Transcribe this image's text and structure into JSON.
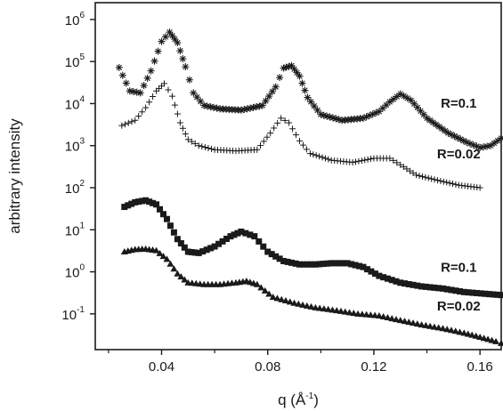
{
  "chart_data": {
    "type": "scatter",
    "title": "",
    "xlabel": "q (Å",
    "xlabel_sup": "-1",
    "xlabel_close": ")",
    "ylabel": "arbitrary intensity",
    "xlim": [
      0.015,
      0.168
    ],
    "ylim_log10": [
      -1.85,
      6.4
    ],
    "y_scale": "log",
    "grid": false,
    "x_ticks": [
      {
        "value": 0.04,
        "label": "0.04"
      },
      {
        "value": 0.08,
        "label": "0.08"
      },
      {
        "value": 0.12,
        "label": "0.12"
      },
      {
        "value": 0.16,
        "label": "0.16"
      }
    ],
    "y_ticks": [
      {
        "exp": 6,
        "base": "10",
        "sup": "6"
      },
      {
        "exp": 5,
        "base": "10",
        "sup": "5"
      },
      {
        "exp": 4,
        "base": "10",
        "sup": "4"
      },
      {
        "exp": 3,
        "base": "10",
        "sup": "3"
      },
      {
        "exp": 2,
        "base": "10",
        "sup": "2"
      },
      {
        "exp": 1,
        "base": "10",
        "sup": "1"
      },
      {
        "exp": 0,
        "base": "10",
        "sup": "0"
      },
      {
        "exp": -1,
        "base": "10",
        "sup": "-1"
      }
    ],
    "series": [
      {
        "name": "R=0.1",
        "marker": "asterisk",
        "x": [
          0.024,
          0.028,
          0.032,
          0.036,
          0.04,
          0.043,
          0.046,
          0.049,
          0.052,
          0.056,
          0.062,
          0.07,
          0.078,
          0.083,
          0.086,
          0.089,
          0.092,
          0.095,
          0.1,
          0.108,
          0.116,
          0.122,
          0.126,
          0.13,
          0.134,
          0.14,
          0.148,
          0.155,
          0.16,
          0.164,
          0.168
        ],
        "y": [
          72000,
          20000,
          18000,
          60000,
          300000,
          500000,
          280000,
          75000,
          18000,
          9000,
          7500,
          7000,
          9000,
          25000,
          70000,
          80000,
          45000,
          14000,
          5500,
          4000,
          4500,
          6500,
          11000,
          17000,
          12000,
          4500,
          2000,
          1200,
          900,
          1000,
          1500
        ]
      },
      {
        "name": "R=0.02",
        "marker": "plus",
        "x": [
          0.025,
          0.03,
          0.034,
          0.038,
          0.041,
          0.044,
          0.047,
          0.05,
          0.054,
          0.06,
          0.068,
          0.076,
          0.081,
          0.085,
          0.088,
          0.092,
          0.096,
          0.104,
          0.112,
          0.12,
          0.126,
          0.13,
          0.136,
          0.144,
          0.152,
          0.16
        ],
        "y": [
          3000,
          4000,
          8000,
          20000,
          30000,
          15000,
          3500,
          1400,
          1000,
          800,
          750,
          800,
          2000,
          4500,
          3500,
          1300,
          650,
          450,
          400,
          500,
          500,
          350,
          200,
          150,
          115,
          100
        ]
      },
      {
        "name": "R=0.1",
        "marker": "square",
        "x": [
          0.026,
          0.03,
          0.034,
          0.038,
          0.042,
          0.046,
          0.05,
          0.054,
          0.06,
          0.066,
          0.07,
          0.075,
          0.08,
          0.086,
          0.092,
          0.098,
          0.104,
          0.11,
          0.116,
          0.122,
          0.13,
          0.138,
          0.146,
          0.154,
          0.162,
          0.168
        ],
        "y": [
          35,
          45,
          50,
          40,
          18,
          6,
          3,
          2.8,
          4,
          7,
          9,
          7,
          3,
          1.8,
          1.5,
          1.5,
          1.6,
          1.6,
          1.3,
          0.8,
          0.55,
          0.45,
          0.4,
          0.33,
          0.3,
          0.28
        ]
      },
      {
        "name": "R=0.02",
        "marker": "triangle",
        "x": [
          0.026,
          0.03,
          0.034,
          0.038,
          0.042,
          0.046,
          0.05,
          0.056,
          0.062,
          0.068,
          0.072,
          0.076,
          0.082,
          0.09,
          0.098,
          0.106,
          0.114,
          0.122,
          0.13,
          0.138,
          0.146,
          0.154,
          0.16,
          0.166,
          0.168
        ],
        "y": [
          3,
          3.4,
          3.5,
          3.2,
          2,
          0.9,
          0.55,
          0.5,
          0.5,
          0.55,
          0.6,
          0.5,
          0.25,
          0.18,
          0.14,
          0.12,
          0.1,
          0.09,
          0.07,
          0.055,
          0.045,
          0.035,
          0.028,
          0.022,
          0.02
        ]
      }
    ],
    "annotations": [
      {
        "text": "R=0.1",
        "x": 0.152,
        "y": 8000
      },
      {
        "text": "R=0.02",
        "x": 0.152,
        "y": 500
      },
      {
        "text": "R=0.1",
        "x": 0.152,
        "y": 1.0
      },
      {
        "text": "R=0.02",
        "x": 0.152,
        "y": 0.12
      }
    ]
  }
}
